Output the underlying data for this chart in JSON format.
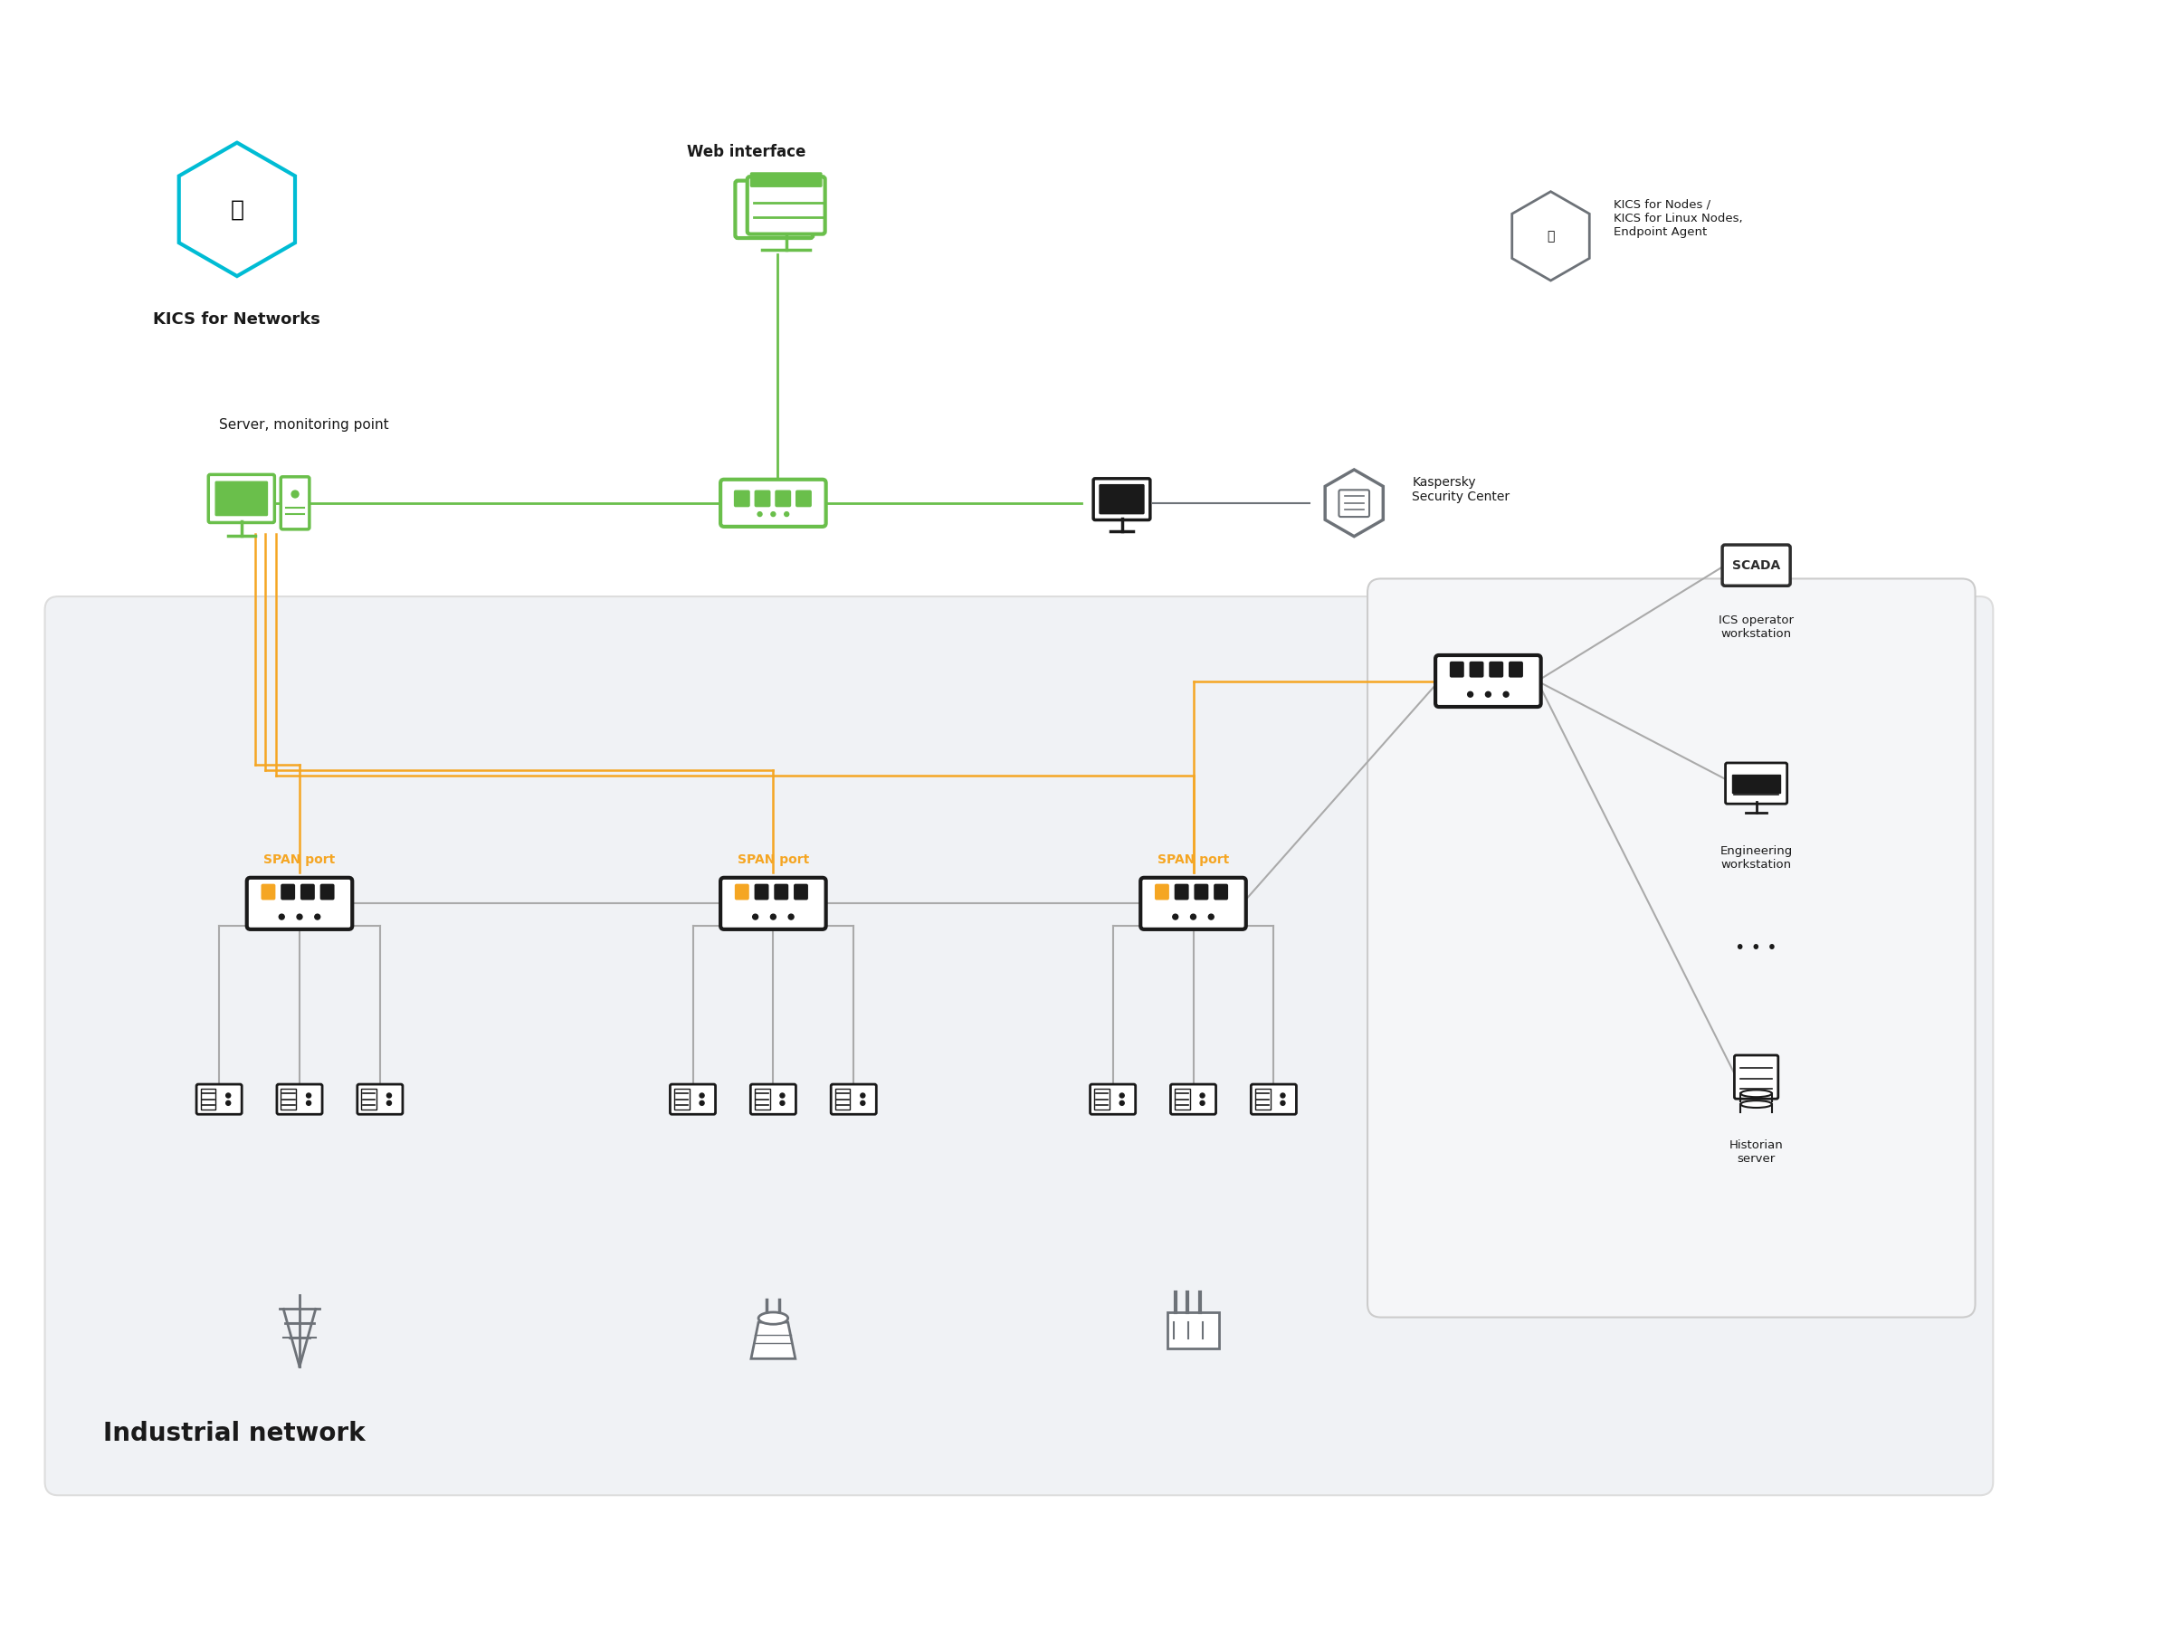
{
  "bg_color": "#ffffff",
  "industrial_bg_color": "#f0f2f5",
  "right_box_bg_color": "#f0f2f5",
  "green_color": "#6abf4b",
  "dark_green": "#5aaf3b",
  "orange_color": "#f5a623",
  "gray_color": "#6d7278",
  "dark_gray": "#2d2d2d",
  "line_gray": "#aaaaaa",
  "black_color": "#1a1a1a",
  "span_text_color": "#f5a623",
  "title_text": "Industrial network",
  "label_kics_networks": "KICS for Networks",
  "label_server_monitoring": "Server, monitoring point",
  "label_web_interface": "Web interface",
  "label_kaspersky": "Kaspersky\nSecurity Center",
  "label_kics_nodes": "KICS for Nodes /\nKICS for Linux Nodes,\nEndpoint Agent",
  "label_scada": "SCADA",
  "label_ics_operator": "ICS operator\nworkstation",
  "label_engineering": "Engineering\nworkstation",
  "label_historian": "Historian\nserver",
  "label_span_port": "SPAN port"
}
